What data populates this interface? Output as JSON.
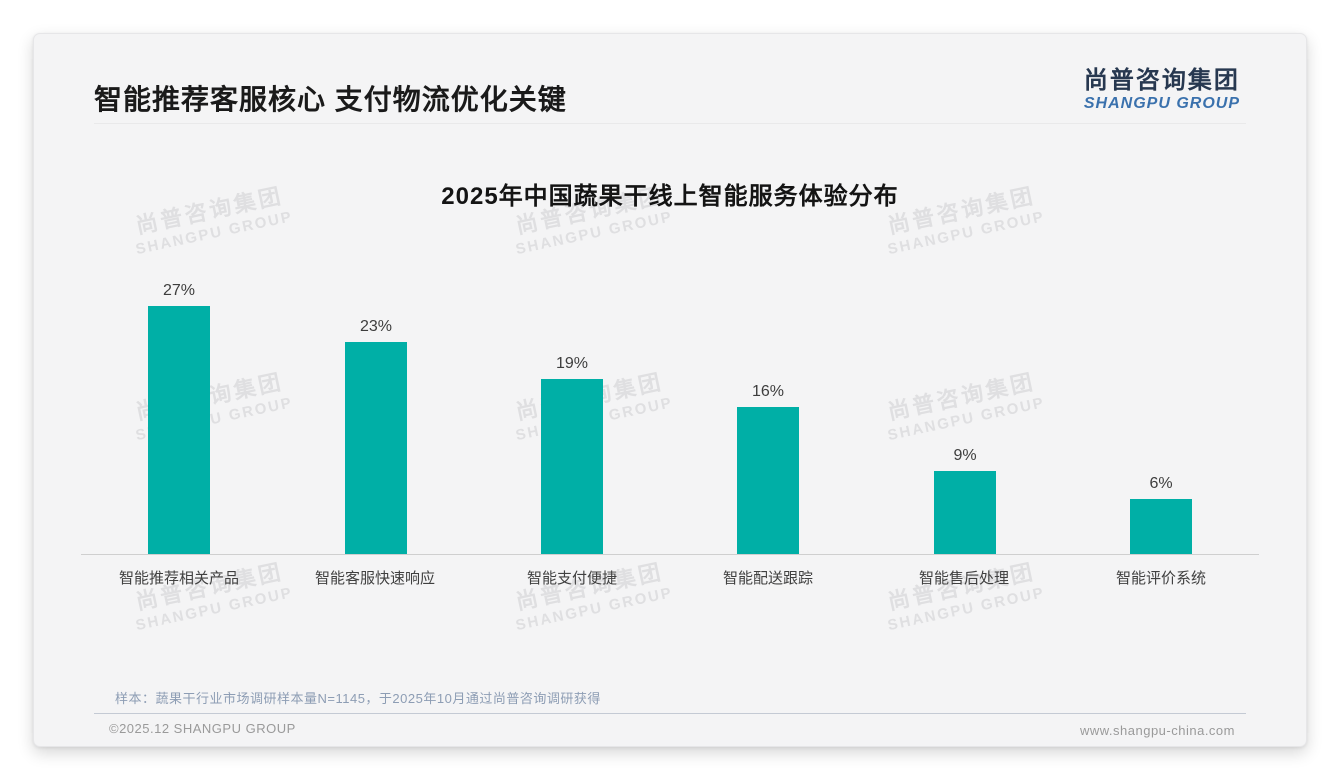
{
  "header": {
    "title": "智能推荐客服核心 支付物流优化关键"
  },
  "logo": {
    "cn": "尚普咨询集团",
    "en": "SHANGPU GROUP"
  },
  "watermark": {
    "cn": "尚普咨询集团",
    "en": "SHANGPU GROUP"
  },
  "chart_data": {
    "type": "bar",
    "title": "2025年中国蔬果干线上智能服务体验分布",
    "categories": [
      "智能推荐相关产品",
      "智能客服快速响应",
      "智能支付便捷",
      "智能配送跟踪",
      "智能售后处理",
      "智能评价系统"
    ],
    "values": [
      27,
      23,
      19,
      16,
      9,
      6
    ],
    "unit": "%",
    "ylabel": "",
    "xlabel": "",
    "ylim": [
      0,
      30
    ],
    "grid": false,
    "legend": "none",
    "value_labels": true,
    "bar_color": "#00afa6",
    "axis_color": "#cfcfcf"
  },
  "note": "样本：蔬果干行业市场调研样本量N=1145，于2025年10月通过尚普咨询调研获得",
  "footer": {
    "left": "©2025.12 SHANGPU GROUP",
    "right": "www.shangpu-china.com"
  },
  "colors": {
    "accent_teal": "#00afa6",
    "logo_navy": "#273850",
    "logo_blue": "#3a71ad",
    "note_bluegray": "#8d9db4",
    "slide_bg": "#f4f4f5",
    "watermark_gray": "#dfdfe1"
  }
}
